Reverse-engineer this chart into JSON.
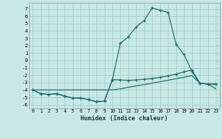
{
  "xlabel": "Humidex (Indice chaleur)",
  "background_color": "#c8e8e4",
  "grid_color": "#a0ccca",
  "line_color": "#1a6b6b",
  "xlim": [
    -0.5,
    23.5
  ],
  "ylim": [
    -6.5,
    7.8
  ],
  "yticks": [
    -6,
    -5,
    -4,
    -3,
    -2,
    -1,
    0,
    1,
    2,
    3,
    4,
    5,
    6,
    7
  ],
  "xticks": [
    0,
    1,
    2,
    3,
    4,
    5,
    6,
    7,
    8,
    9,
    10,
    11,
    12,
    13,
    14,
    15,
    16,
    17,
    18,
    19,
    20,
    21,
    22,
    23
  ],
  "x": [
    0,
    1,
    2,
    3,
    4,
    5,
    6,
    7,
    8,
    9,
    10,
    11,
    12,
    13,
    14,
    15,
    16,
    17,
    18,
    19,
    20,
    21,
    22,
    23
  ],
  "line1": [
    -4.0,
    -4.5,
    -4.6,
    -4.5,
    -4.85,
    -5.1,
    -5.1,
    -5.3,
    -5.6,
    -5.5,
    -2.6,
    2.3,
    3.2,
    4.55,
    5.4,
    7.1,
    6.8,
    6.5,
    2.2,
    0.8,
    -1.5,
    -3.1,
    -3.2,
    -3.2
  ],
  "line2": [
    -4.0,
    -4.5,
    -4.6,
    -4.5,
    -4.85,
    -5.1,
    -5.1,
    -5.3,
    -5.6,
    -5.5,
    -2.6,
    -2.65,
    -2.7,
    -2.65,
    -2.55,
    -2.45,
    -2.3,
    -2.1,
    -1.85,
    -1.55,
    -1.3,
    -3.1,
    -3.2,
    -3.2
  ],
  "line3": [
    -4.0,
    -4.0,
    -4.0,
    -4.0,
    -4.0,
    -4.0,
    -4.0,
    -4.0,
    -4.0,
    -4.0,
    -4.0,
    -3.85,
    -3.65,
    -3.45,
    -3.28,
    -3.08,
    -2.88,
    -2.68,
    -2.48,
    -2.28,
    -2.05,
    -3.1,
    -3.2,
    -3.85
  ]
}
